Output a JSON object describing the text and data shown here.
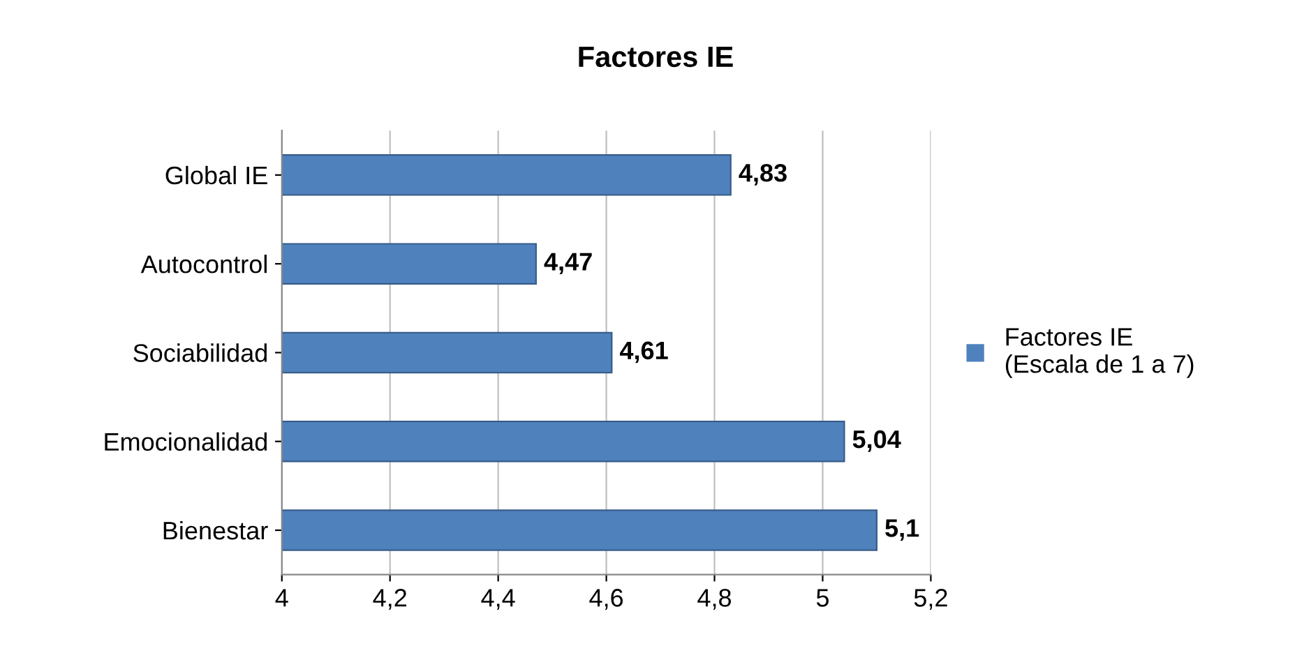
{
  "chart_data": {
    "type": "bar",
    "orientation": "horizontal",
    "title": "Factores IE",
    "categories": [
      "Global IE",
      "Autocontrol",
      "Sociabilidad",
      "Emocionalidad",
      "Bienestar"
    ],
    "series": [
      {
        "name": "Factores IE\n(Escala de 1 a 7)",
        "color": "#4f81bd",
        "values": [
          4.83,
          4.47,
          4.61,
          5.04,
          5.1
        ],
        "value_labels": [
          "4,83",
          "4,47",
          "4,61",
          "5,04",
          "5,1"
        ]
      }
    ],
    "xlim": [
      4,
      5.2
    ],
    "xticks": [
      4,
      {
        "value": 4.2,
        "label": "4,2"
      },
      {
        "value": 4.4,
        "label": "4,4"
      },
      {
        "value": 4.6,
        "label": "4,6"
      },
      {
        "value": 4.8,
        "label": "4,8"
      },
      5,
      {
        "value": 5.2,
        "label": "5,2"
      }
    ],
    "grid": "x",
    "legend": "right"
  }
}
